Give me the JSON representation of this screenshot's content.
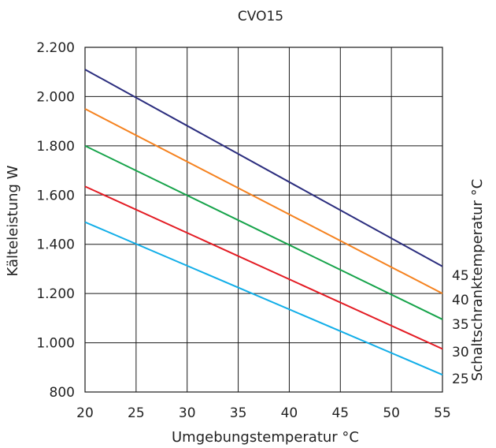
{
  "chart_data": {
    "type": "line",
    "title": "CVO15",
    "xlabel": "Umgebungstemperatur °C",
    "ylabel": "Kälteleistung W",
    "right_label": "Schaltschranktemperatur °C",
    "xlim": [
      20,
      55
    ],
    "ylim": [
      800,
      2200
    ],
    "xticks": [
      "20",
      "25",
      "30",
      "35",
      "40",
      "45",
      "50",
      "55"
    ],
    "yticks": [
      "800",
      "1.000",
      "1.200",
      "1.400",
      "1.600",
      "1.800",
      "2.000",
      "2.200"
    ],
    "xtick_values": [
      20,
      25,
      30,
      35,
      40,
      45,
      50,
      55
    ],
    "ytick_values": [
      800,
      1000,
      1200,
      1400,
      1600,
      1800,
      2000,
      2200
    ],
    "grid": true,
    "series": [
      {
        "name": "45",
        "color": "#2b2d7e",
        "x": [
          20,
          55
        ],
        "y": [
          2110,
          1310
        ]
      },
      {
        "name": "40",
        "color": "#f5821f",
        "x": [
          20,
          55
        ],
        "y": [
          1950,
          1200
        ]
      },
      {
        "name": "35",
        "color": "#16a34a",
        "x": [
          20,
          55
        ],
        "y": [
          1800,
          1095
        ]
      },
      {
        "name": "30",
        "color": "#e31b23",
        "x": [
          20,
          55
        ],
        "y": [
          1635,
          975
        ]
      },
      {
        "name": "25",
        "color": "#12aee8",
        "x": [
          20,
          55
        ],
        "y": [
          1490,
          870
        ]
      }
    ],
    "series_label_order": [
      "45",
      "40",
      "35",
      "30",
      "25"
    ]
  }
}
